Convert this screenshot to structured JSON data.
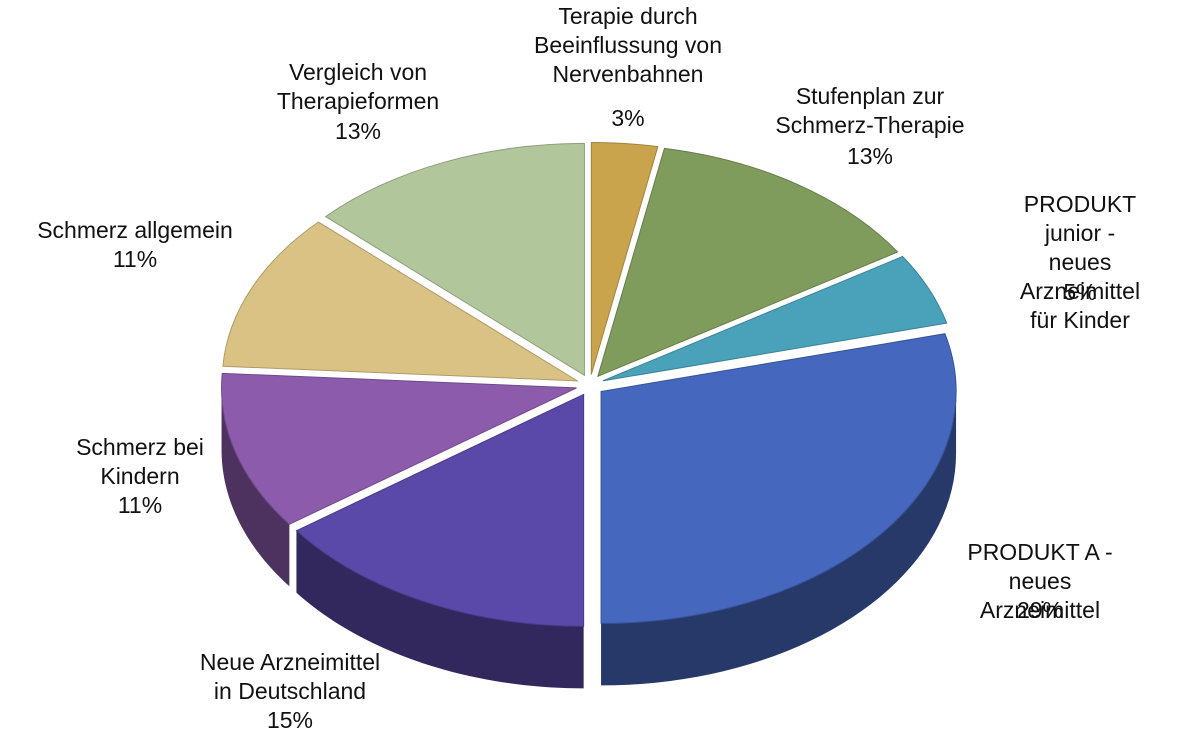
{
  "chart_data": {
    "type": "pie",
    "categories": [
      "Terapie durch\nBeeinflussung von\nNervenbahnen",
      "Stufenplan zur\nSchmerz-Therapie",
      "PRODUKT  junior -\nneues Arzneimittel\nfür Kinder",
      "PRODUKT   A -\nneues Arzneimittel",
      "Neue Arzneimittel\nin Deutschland",
      "Schmerz bei\nKindern",
      "Schmerz allgemein",
      "Vergleich von\nTherapieformen"
    ],
    "values": [
      3,
      13,
      5,
      29,
      15,
      11,
      11,
      13
    ],
    "value_labels": [
      "3%",
      "13%",
      "5%",
      "29%",
      "15%",
      "11%",
      "11%",
      "13%"
    ],
    "colors": [
      "#c9a44c",
      "#7f9c5c",
      "#4aa2ba",
      "#4567bd",
      "#5a49a9",
      "#8c5bac",
      "#d9c283",
      "#b2c69c"
    ]
  }
}
